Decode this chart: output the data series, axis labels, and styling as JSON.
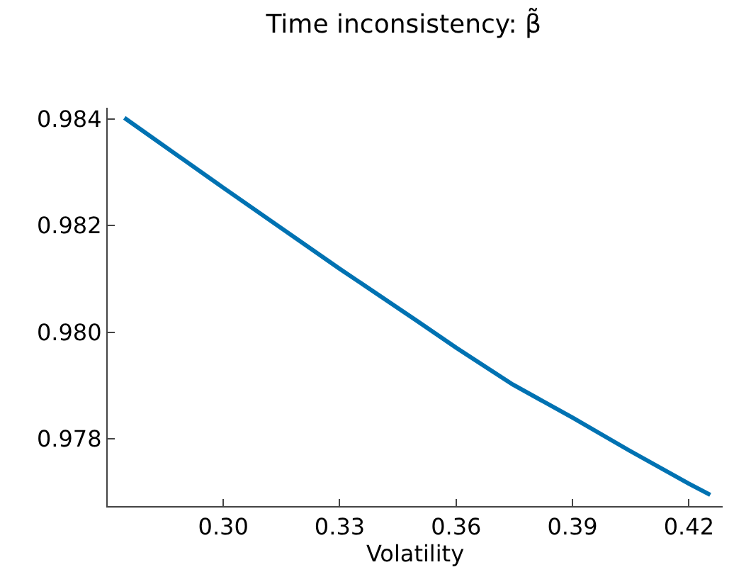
{
  "chart_data": {
    "type": "line",
    "title": "Time inconsistency: β̃",
    "xlabel": "Volatility",
    "x": [
      0.2745,
      0.3,
      0.33,
      0.35,
      0.36,
      0.3746,
      0.39,
      0.4047,
      0.42,
      0.4255
    ],
    "series": [
      {
        "color": "#0072b2",
        "values": [
          0.98402,
          0.98271,
          0.98119,
          0.98021,
          0.97971,
          0.97902,
          0.9784,
          0.97778,
          0.97716,
          0.97695
        ]
      }
    ],
    "xlim": [
      0.2702,
      0.4287
    ],
    "ylim": [
      0.97674,
      0.98421
    ],
    "xticks": [
      {
        "value": 0.3,
        "label": "0.30"
      },
      {
        "value": 0.33,
        "label": "0.33"
      },
      {
        "value": 0.36,
        "label": "0.36"
      },
      {
        "value": 0.39,
        "label": "0.39"
      },
      {
        "value": 0.42,
        "label": "0.42"
      }
    ],
    "yticks": [
      {
        "value": 0.984,
        "label": "0.984"
      },
      {
        "value": 0.982,
        "label": "0.982"
      },
      {
        "value": 0.98,
        "label": "0.980"
      },
      {
        "value": 0.978,
        "label": "0.978"
      }
    ],
    "line_style": "solid"
  }
}
